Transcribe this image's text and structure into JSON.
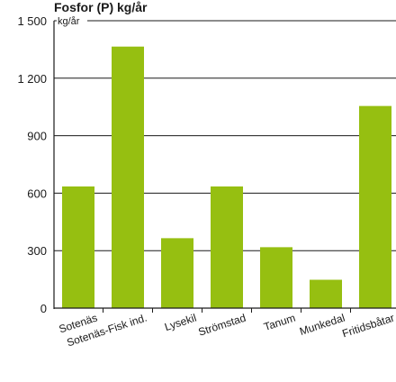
{
  "chart_data": {
    "type": "bar",
    "title": "Fosfor (P) kg/år",
    "unit_label": "kg/år",
    "categories": [
      "Sotenäs",
      "Sotenäs-Fisk ind.",
      "Lysekil",
      "Strömstad",
      "Tanum",
      "Munkedal",
      "Fritidsbåtar"
    ],
    "values": [
      635,
      1365,
      365,
      635,
      318,
      148,
      1055
    ],
    "yticks": [
      "0",
      "300",
      "600",
      "900",
      "1 200",
      "1 500"
    ],
    "ylim": [
      0,
      1500
    ],
    "grid": true,
    "bar_color": "#96bf11",
    "grid_color": "#1a1a1a"
  }
}
